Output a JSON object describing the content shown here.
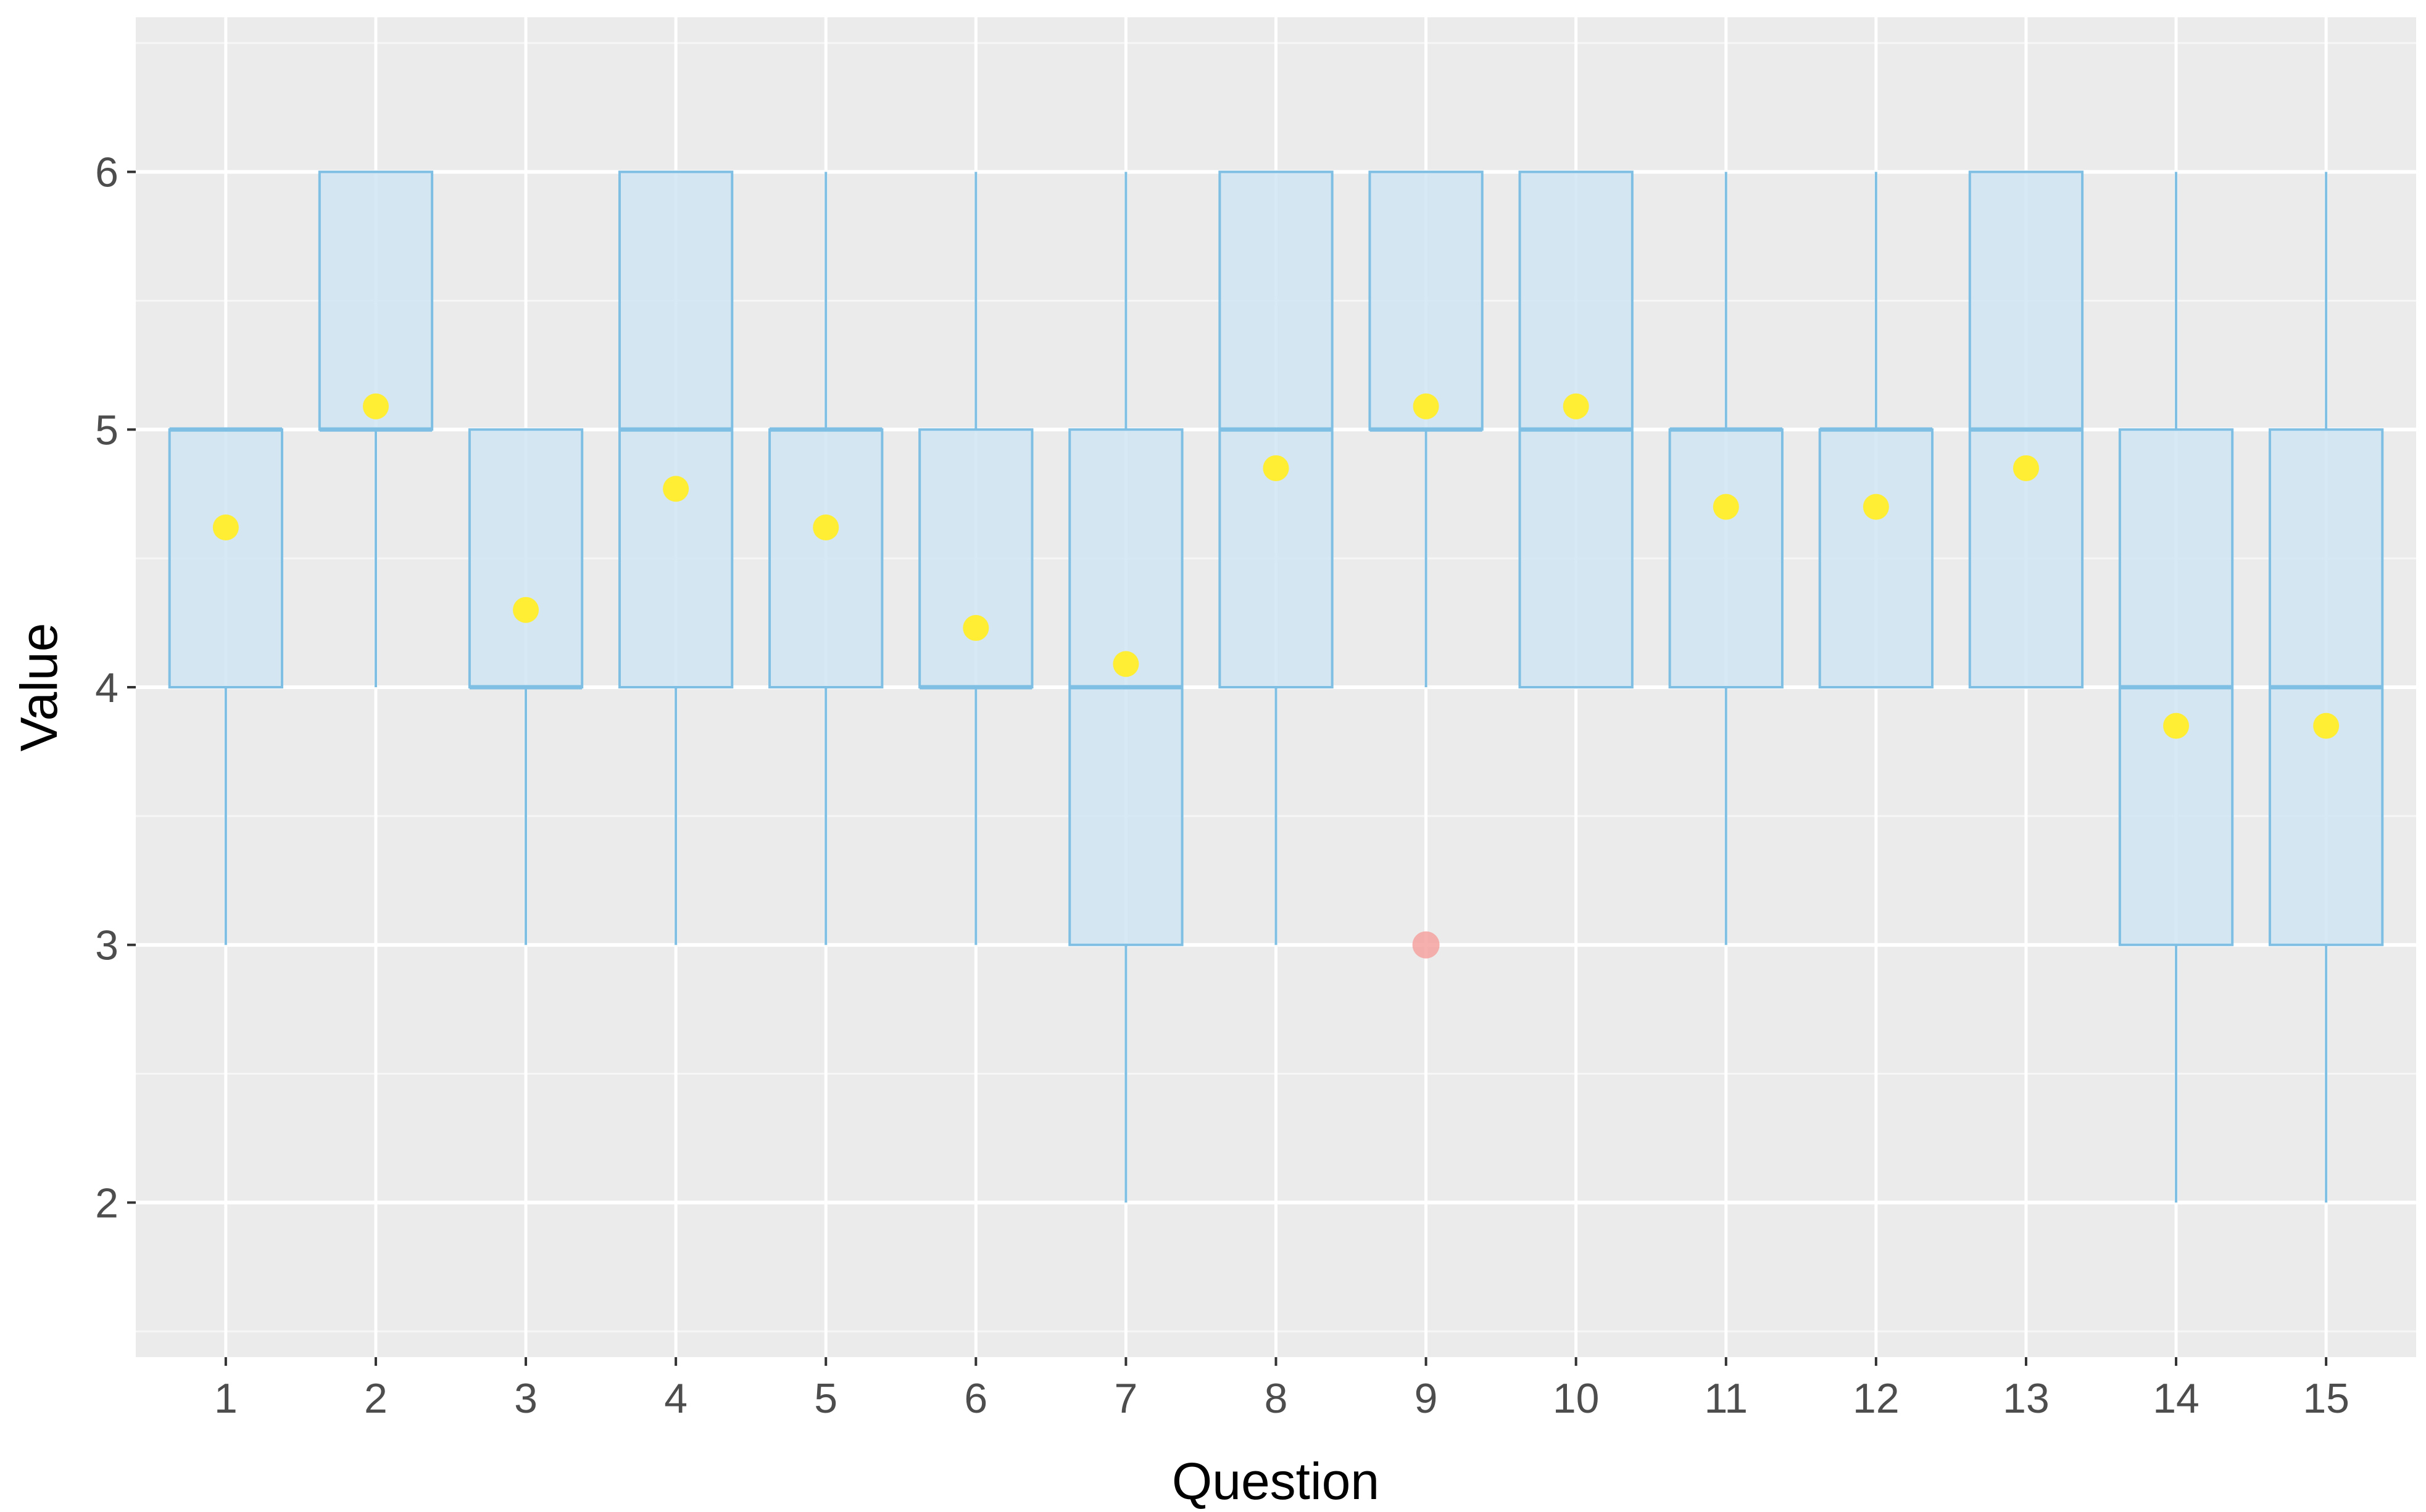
{
  "chart_data": {
    "type": "boxplot",
    "xlabel": "Question",
    "ylabel": "Value",
    "ylim": [
      1.4,
      6.6
    ],
    "y_ticks": [
      2,
      3,
      4,
      5,
      6
    ],
    "grid": true,
    "categories": [
      "1",
      "2",
      "3",
      "4",
      "5",
      "6",
      "7",
      "8",
      "9",
      "10",
      "11",
      "12",
      "13",
      "14",
      "15"
    ],
    "boxes": [
      {
        "category": "1",
        "whisker_low": 3,
        "q1": 4,
        "median": 5,
        "q3": 5,
        "whisker_high": 5,
        "mean": 4.62,
        "outliers": []
      },
      {
        "category": "2",
        "whisker_low": 4,
        "q1": 5,
        "median": 5,
        "q3": 6,
        "whisker_high": 6,
        "mean": 5.09,
        "outliers": []
      },
      {
        "category": "3",
        "whisker_low": 3,
        "q1": 4,
        "median": 4,
        "q3": 5,
        "whisker_high": 5,
        "mean": 4.3,
        "outliers": []
      },
      {
        "category": "4",
        "whisker_low": 3,
        "q1": 4,
        "median": 5,
        "q3": 6,
        "whisker_high": 6,
        "mean": 4.77,
        "outliers": []
      },
      {
        "category": "5",
        "whisker_low": 3,
        "q1": 4,
        "median": 5,
        "q3": 5,
        "whisker_high": 6,
        "mean": 4.62,
        "outliers": []
      },
      {
        "category": "6",
        "whisker_low": 3,
        "q1": 4,
        "median": 4,
        "q3": 5,
        "whisker_high": 6,
        "mean": 4.23,
        "outliers": []
      },
      {
        "category": "7",
        "whisker_low": 2,
        "q1": 3,
        "median": 4,
        "q3": 5,
        "whisker_high": 6,
        "mean": 4.09,
        "outliers": []
      },
      {
        "category": "8",
        "whisker_low": 3,
        "q1": 4,
        "median": 5,
        "q3": 6,
        "whisker_high": 6,
        "mean": 4.85,
        "outliers": []
      },
      {
        "category": "9",
        "whisker_low": 4,
        "q1": 5,
        "median": 5,
        "q3": 6,
        "whisker_high": 6,
        "mean": 5.09,
        "outliers": [
          3
        ]
      },
      {
        "category": "10",
        "whisker_low": 4,
        "q1": 4,
        "median": 5,
        "q3": 6,
        "whisker_high": 6,
        "mean": 5.09,
        "outliers": []
      },
      {
        "category": "11",
        "whisker_low": 3,
        "q1": 4,
        "median": 5,
        "q3": 5,
        "whisker_high": 6,
        "mean": 4.7,
        "outliers": []
      },
      {
        "category": "12",
        "whisker_low": 4,
        "q1": 4,
        "median": 5,
        "q3": 5,
        "whisker_high": 6,
        "mean": 4.7,
        "outliers": []
      },
      {
        "category": "13",
        "whisker_low": 4,
        "q1": 4,
        "median": 5,
        "q3": 6,
        "whisker_high": 6,
        "mean": 4.85,
        "outliers": []
      },
      {
        "category": "14",
        "whisker_low": 2,
        "q1": 3,
        "median": 4,
        "q3": 5,
        "whisker_high": 6,
        "mean": 3.85,
        "outliers": []
      },
      {
        "category": "15",
        "whisker_low": 2,
        "q1": 3,
        "median": 4,
        "q3": 5,
        "whisker_high": 6,
        "mean": 3.85,
        "outliers": []
      }
    ],
    "colors": {
      "panel_background": "#ebebeb",
      "grid": "#ffffff",
      "box_fill": "#d0e5f3",
      "box_stroke": "#7fbfe3",
      "mean_point": "#ffee33",
      "outlier_point": "#f4a3a0"
    }
  }
}
